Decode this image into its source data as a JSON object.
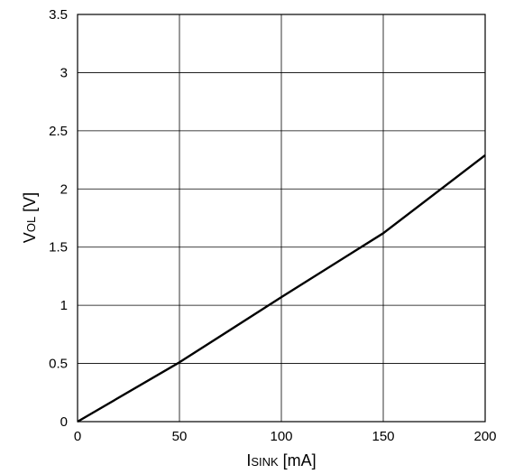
{
  "chart_data": {
    "type": "line",
    "xlabel": {
      "main": "I",
      "sub": "SINK",
      "unit": " [mA]"
    },
    "ylabel": {
      "main": "V",
      "sub": "OL",
      "unit": " [V]"
    },
    "xlim": [
      0,
      200
    ],
    "ylim": [
      0,
      3.5
    ],
    "x_ticks": [
      "0",
      "50",
      "100",
      "150",
      "200"
    ],
    "y_ticks": [
      "0",
      "0.5",
      "1",
      "1.5",
      "2",
      "2.5",
      "3",
      "3.5"
    ],
    "grid": true,
    "series": [
      {
        "x": [
          0,
          50,
          100,
          150,
          200
        ],
        "y": [
          0,
          0.51,
          1.07,
          1.62,
          2.29
        ]
      }
    ]
  }
}
